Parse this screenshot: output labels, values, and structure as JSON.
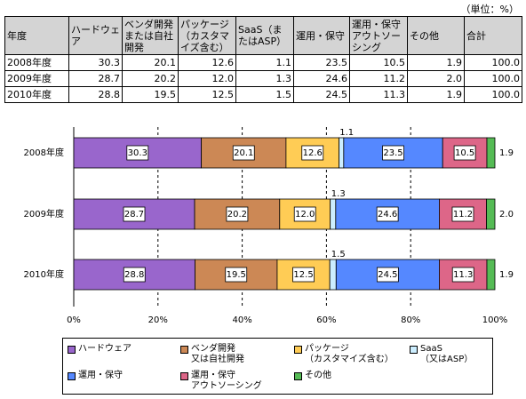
{
  "table": {
    "unit": "（単位：%）",
    "header": [
      "年度",
      "ハードウェア",
      "ベンダ開発または自社開発",
      "パッケージ（カスタマイズ含む）",
      "SaaS（またはASP）",
      "運用・保守",
      "運用・保守アウトソーシング",
      "その他",
      "合計"
    ],
    "rows": [
      [
        "2008年度",
        "30.3",
        "20.1",
        "12.6",
        "1.1",
        "23.5",
        "10.5",
        "1.9",
        "100.0"
      ],
      [
        "2009年度",
        "28.7",
        "20.2",
        "12.0",
        "1.3",
        "24.6",
        "11.2",
        "2.0",
        "100.0"
      ],
      [
        "2010年度",
        "28.8",
        "19.5",
        "12.5",
        "1.5",
        "24.5",
        "11.3",
        "1.9",
        "100.0"
      ]
    ]
  },
  "chart_data": {
    "type": "stacked-hbar",
    "categories": [
      "2008年度",
      "2009年度",
      "2010年度"
    ],
    "series": [
      {
        "name": "ハードウェア",
        "color": "#9966cc",
        "values": [
          30.3,
          28.7,
          28.8
        ]
      },
      {
        "name": "ベンダ開発\n又は自社開発",
        "color": "#cc8855",
        "values": [
          20.1,
          20.2,
          19.5
        ]
      },
      {
        "name": "パッケージ\n（カスタマイズ含む）",
        "color": "#ffcc55",
        "values": [
          12.6,
          12.0,
          12.5
        ],
        "value_labels": [
          "12.6",
          "12.0",
          "12.5"
        ]
      },
      {
        "name": "SaaS\n（又はASP）",
        "color": "#cceeff",
        "values": [
          1.1,
          1.3,
          1.5
        ]
      },
      {
        "name": "運用・保守",
        "color": "#5588ff",
        "values": [
          23.5,
          24.6,
          24.5
        ]
      },
      {
        "name": "運用・保守\nアウトソーシング",
        "color": "#dd6688",
        "values": [
          10.5,
          11.2,
          11.3
        ]
      },
      {
        "name": "その他",
        "color": "#55bb55",
        "values": [
          1.9,
          2.0,
          1.9
        ],
        "value_labels": [
          "1.9",
          "2.0",
          "1.9"
        ]
      }
    ],
    "xlim": [
      0,
      100
    ],
    "xticks": [
      {
        "value": 0,
        "label": "0%"
      },
      {
        "value": 20,
        "label": "20%"
      },
      {
        "value": 40,
        "label": "40%"
      },
      {
        "value": 60,
        "label": "60%"
      },
      {
        "value": 80,
        "label": "80%"
      },
      {
        "value": 100,
        "label": "100%"
      }
    ],
    "grid": true
  }
}
